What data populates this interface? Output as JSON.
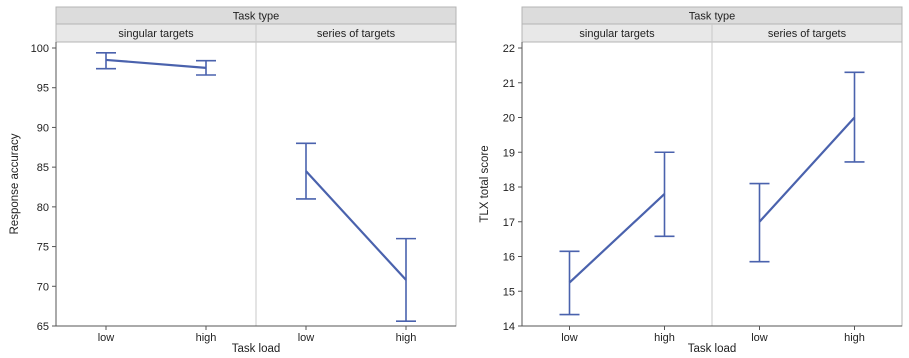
{
  "chart_data": [
    {
      "type": "line",
      "facet_header": "Task type",
      "facets": [
        "singular targets",
        "series of targets"
      ],
      "categories": [
        "low",
        "high"
      ],
      "xlabel": "Task load",
      "ylabel": "Response accuracy",
      "ylim": [
        65,
        100
      ],
      "yticks": [
        65,
        70,
        75,
        80,
        85,
        90,
        95,
        100
      ],
      "series_color": "#4a62ad",
      "series": [
        {
          "facet": "singular targets",
          "values": [
            98.5,
            97.5
          ],
          "err_low": [
            97.4,
            96.6
          ],
          "err_high": [
            99.4,
            98.4
          ]
        },
        {
          "facet": "series of targets",
          "values": [
            84.5,
            70.8
          ],
          "err_low": [
            81.0,
            65.6
          ],
          "err_high": [
            88.0,
            76.0
          ]
        }
      ]
    },
    {
      "type": "line",
      "facet_header": "Task type",
      "facets": [
        "singular targets",
        "series of targets"
      ],
      "categories": [
        "low",
        "high"
      ],
      "xlabel": "Task load",
      "ylabel": "TLX total score",
      "ylim": [
        14,
        22
      ],
      "yticks": [
        14,
        15,
        16,
        17,
        18,
        19,
        20,
        21,
        22
      ],
      "series_color": "#4a62ad",
      "series": [
        {
          "facet": "singular targets",
          "values": [
            15.25,
            17.8
          ],
          "err_low": [
            14.33,
            16.58
          ],
          "err_high": [
            16.15,
            19.0
          ]
        },
        {
          "facet": "series of targets",
          "values": [
            17.0,
            20.0
          ],
          "err_low": [
            15.85,
            18.72
          ],
          "err_high": [
            18.1,
            21.3
          ]
        }
      ]
    }
  ]
}
